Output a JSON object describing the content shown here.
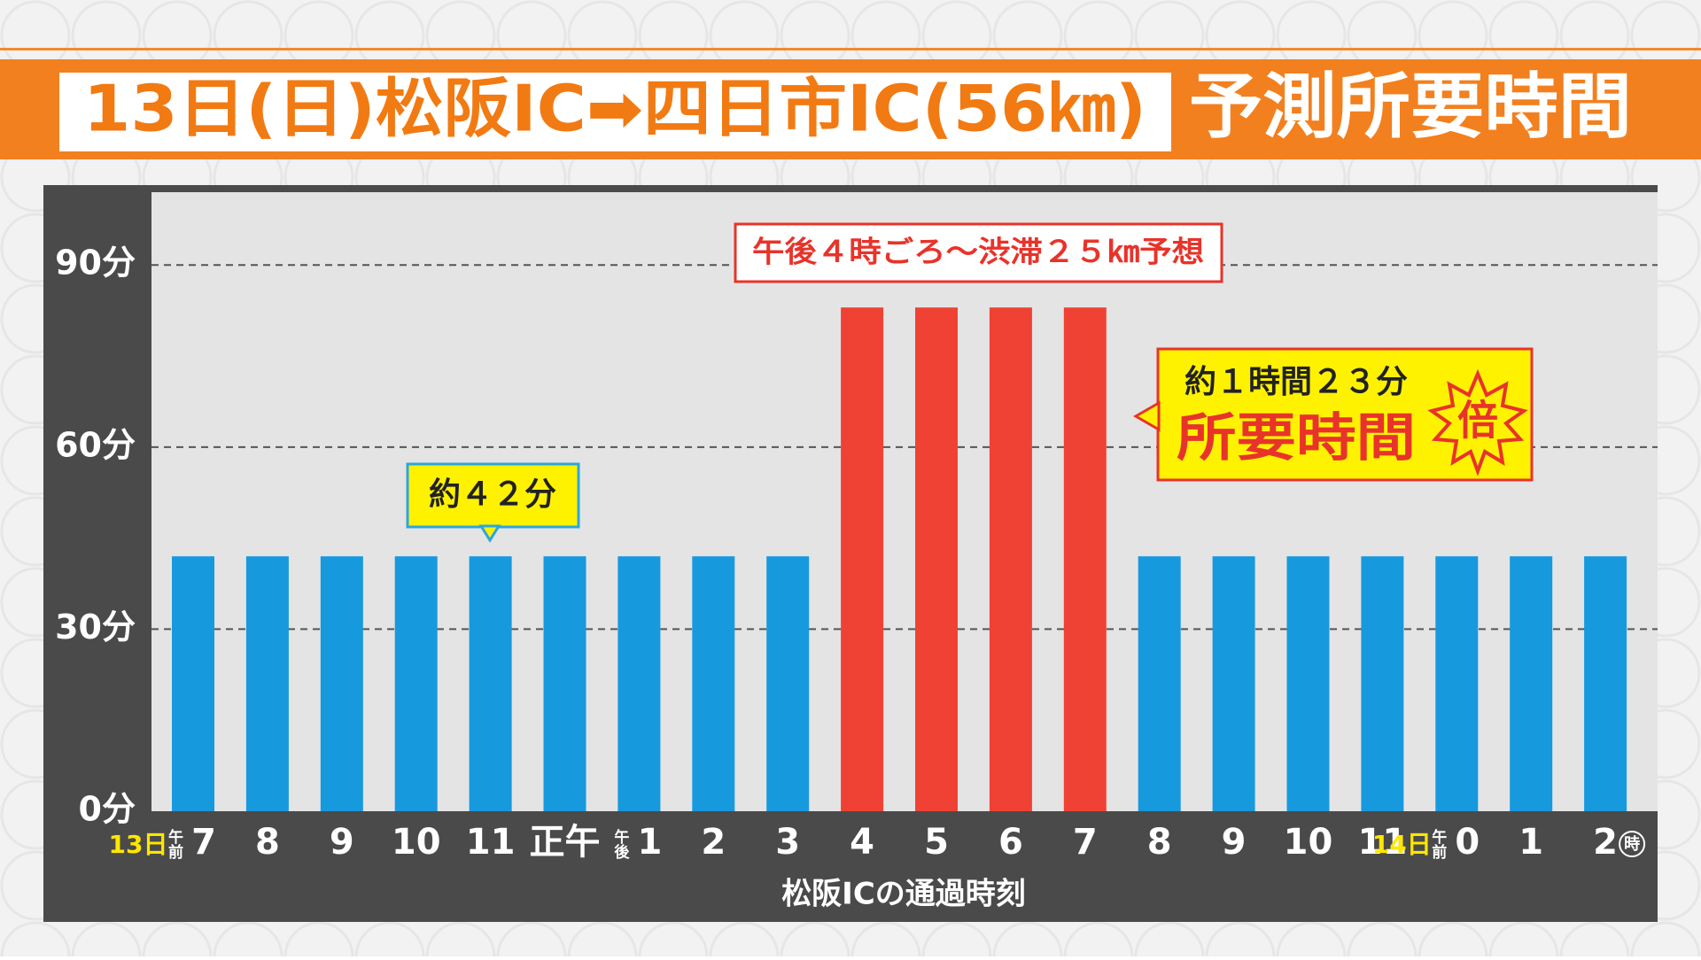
{
  "chart_data": {
    "type": "bar",
    "title": "13日(日)松阪IC➡四日市IC(56㎞)",
    "subtitle": "予測所要時間",
    "x_label": "松阪ICの通過時刻",
    "categories": [
      "7",
      "8",
      "9",
      "10",
      "11",
      "正午",
      "1",
      "2",
      "3",
      "4",
      "5",
      "6",
      "7",
      "8",
      "9",
      "10",
      "11",
      "0",
      "1",
      "2"
    ],
    "category_prefixes": [
      "午前",
      null,
      null,
      null,
      null,
      null,
      "午後",
      null,
      null,
      null,
      null,
      null,
      null,
      null,
      null,
      null,
      null,
      "午前",
      null,
      null
    ],
    "date_labels": [
      "13日",
      null,
      null,
      null,
      null,
      null,
      null,
      null,
      null,
      null,
      null,
      null,
      null,
      null,
      null,
      null,
      null,
      "14日",
      null,
      null
    ],
    "x_unit": "時",
    "values": [
      42,
      42,
      42,
      42,
      42,
      42,
      42,
      42,
      42,
      83,
      83,
      83,
      83,
      42,
      42,
      42,
      42,
      42,
      42,
      42
    ],
    "colors": [
      "#1799de",
      "#1799de",
      "#1799de",
      "#1799de",
      "#1799de",
      "#1799de",
      "#1799de",
      "#1799de",
      "#1799de",
      "#ef4234",
      "#ef4234",
      "#ef4234",
      "#ef4234",
      "#1799de",
      "#1799de",
      "#1799de",
      "#1799de",
      "#1799de",
      "#1799de",
      "#1799de"
    ],
    "ylim": [
      0,
      102
    ],
    "yticks": [
      {
        "value": 0,
        "label": "0分"
      },
      {
        "value": 30,
        "label": "30分"
      },
      {
        "value": 60,
        "label": "60分"
      },
      {
        "value": 90,
        "label": "90分"
      }
    ],
    "grid": true,
    "annotations": {
      "typical": "約４２分",
      "jam": "午後４時ごろ～渋滞２５㎞予想",
      "peak_time": "約１時間２３分",
      "peak_label": "所要時間",
      "peak_badge": "倍"
    }
  }
}
